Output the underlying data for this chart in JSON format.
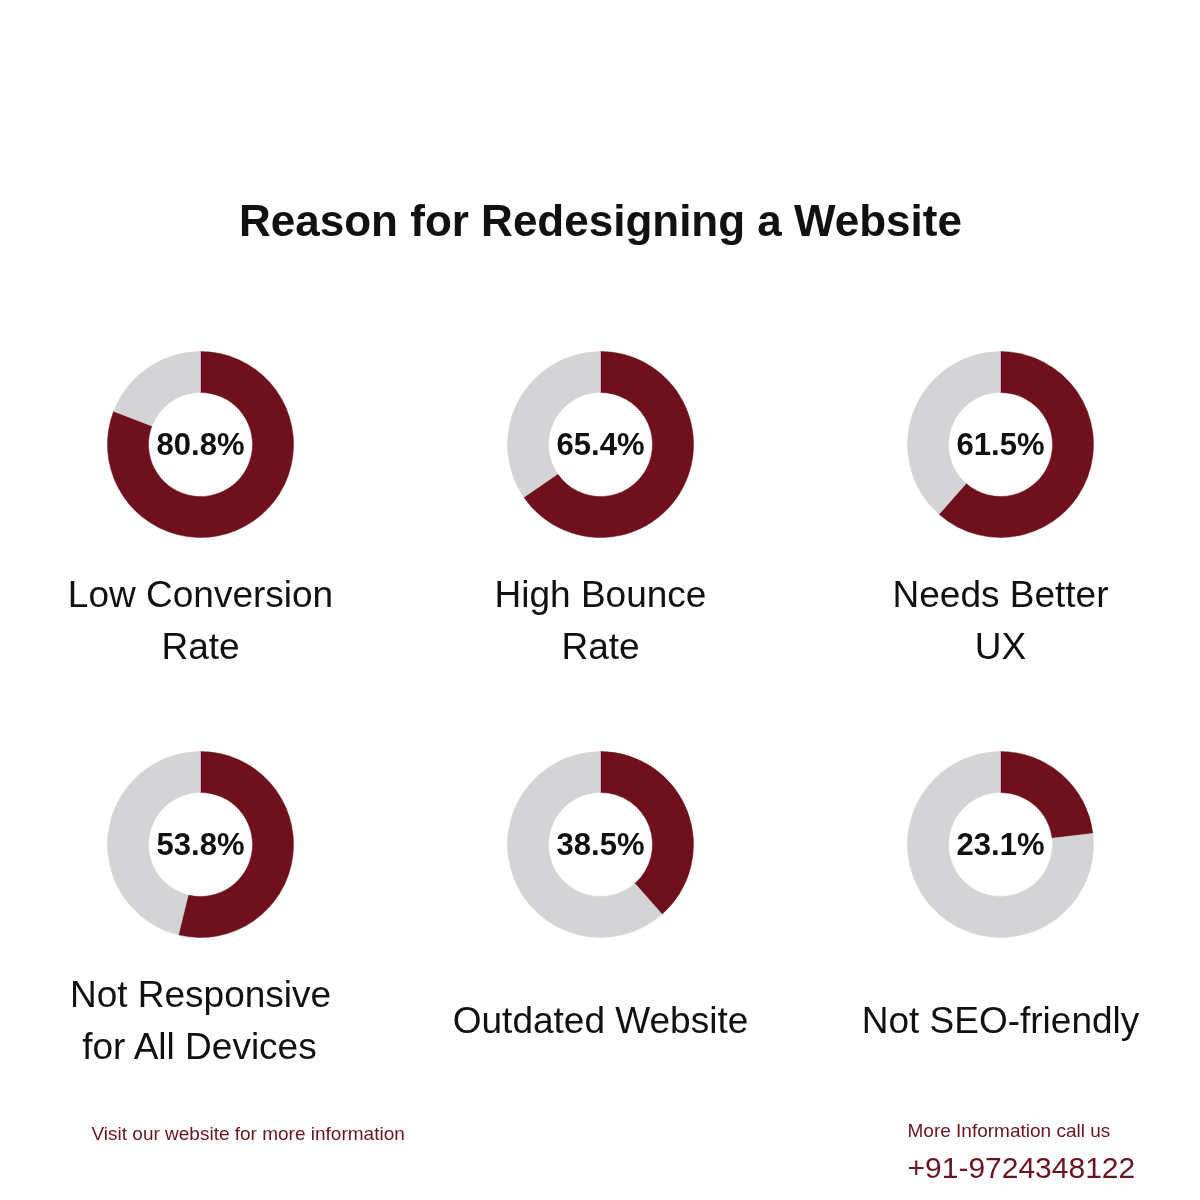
{
  "chart_data": [
    {
      "type": "other",
      "title": "Reason for Redesigning a Website"
    },
    {
      "type": "donut",
      "title": "Low Conversion\nRate",
      "categories": [
        null,
        null
      ],
      "values": [
        80.8,
        19.2
      ],
      "colors": [
        "#6e111c",
        "#d4d4d6"
      ],
      "value_labels": [
        "80.8%",
        null
      ]
    },
    {
      "type": "donut",
      "title": "High Bounce\nRate",
      "categories": [
        null,
        null
      ],
      "values": [
        65.4,
        34.6
      ],
      "colors": [
        "#6e111c",
        "#d4d4d6"
      ],
      "value_labels": [
        "65.4%",
        null
      ]
    },
    {
      "type": "donut",
      "title": "Needs Better\nUX",
      "categories": [
        null,
        null
      ],
      "values": [
        61.5,
        38.5
      ],
      "colors": [
        "#6e111c",
        "#d4d4d6"
      ],
      "value_labels": [
        "61.5%",
        null
      ]
    },
    {
      "type": "donut",
      "title": "Not Responsive\nfor All Devices",
      "categories": [
        null,
        null
      ],
      "values": [
        53.8,
        46.2
      ],
      "colors": [
        "#6e111c",
        "#d4d4d6"
      ],
      "value_labels": [
        "53.8%",
        null
      ]
    },
    {
      "type": "donut",
      "title": "Outdated Website",
      "categories": [
        null,
        null
      ],
      "values": [
        38.5,
        61.5
      ],
      "colors": [
        "#6e111c",
        "#d4d4d6"
      ],
      "value_labels": [
        "38.5%",
        null
      ]
    },
    {
      "type": "donut",
      "title": "Not SEO-friendly",
      "categories": [
        null,
        null
      ],
      "values": [
        23.1,
        76.9
      ],
      "colors": [
        "#6e111c",
        "#d4d4d6"
      ],
      "value_labels": [
        "23.1%",
        null
      ]
    },
    {
      "type": "other",
      "annotations": [
        "Visit our website for more information",
        "More Information call us",
        "+91-9724348122"
      ]
    }
  ]
}
